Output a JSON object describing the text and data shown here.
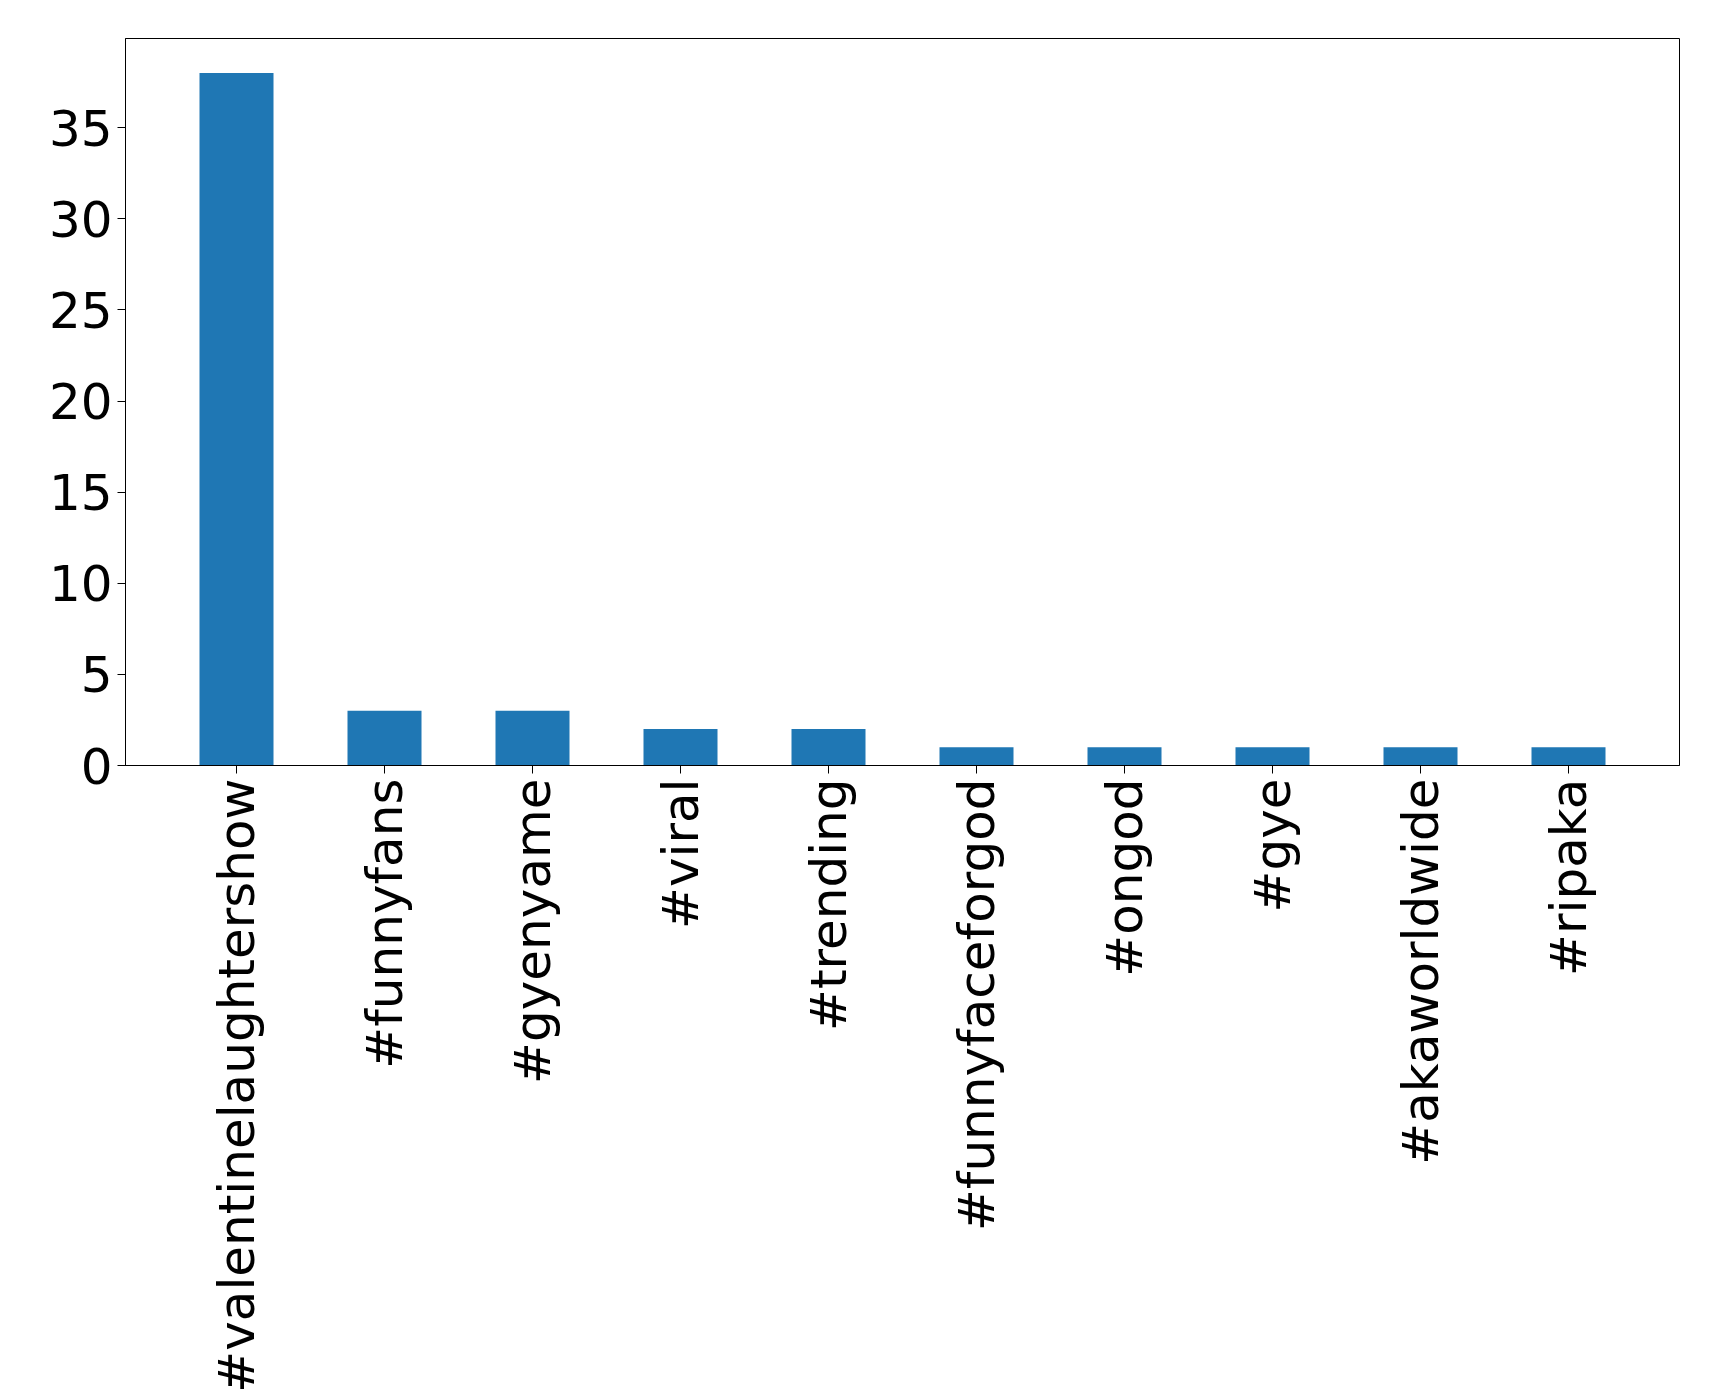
{
  "chart_data": {
    "type": "bar",
    "categories": [
      "#valentinelaughtershow",
      "#funnyfans",
      "#gyenyame",
      "#viral",
      "#trending",
      "#funnyfaceforgod",
      "#ongod",
      "#gye",
      "#akaworldwide",
      "#ripaka"
    ],
    "values": [
      38,
      3,
      3,
      2,
      2,
      1,
      1,
      1,
      1,
      1
    ],
    "color": "#1f77b4",
    "ylim": [
      0,
      39.9
    ],
    "yticks": [
      0,
      5,
      10,
      15,
      20,
      25,
      30,
      35
    ],
    "grid": false
  }
}
